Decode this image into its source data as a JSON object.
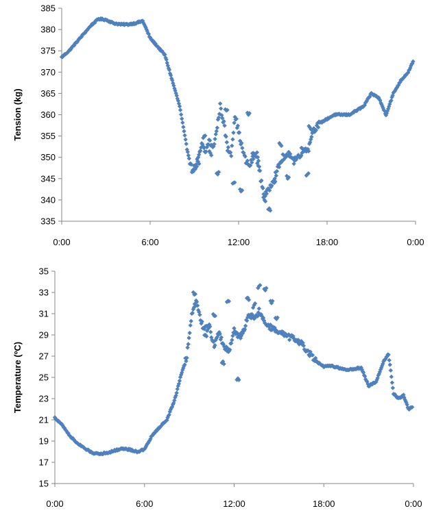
{
  "chart_data": [
    {
      "type": "scatter",
      "title": "",
      "xlabel": "",
      "ylabel": "Tension (kg)",
      "ylim": [
        335,
        385
      ],
      "yticks": [
        "385",
        "380",
        "375",
        "370",
        "365",
        "360",
        "355",
        "350",
        "345",
        "340",
        "335"
      ],
      "xlim": [
        "0:00",
        "0:00"
      ],
      "xticks": [
        "0:00",
        "6:00",
        "12:00",
        "18:00",
        "0:00"
      ],
      "grid": false,
      "legend": "none",
      "marker": "diamond",
      "color": "#4F81BD",
      "series": [
        {
          "x": [
            "0:00",
            "0:30",
            "1:00",
            "1:30",
            "2:00",
            "2:30",
            "3:00",
            "3:30",
            "4:00",
            "4:30",
            "5:00",
            "5:30",
            "6:00",
            "6:30",
            "7:00",
            "7:30",
            "8:00",
            "8:30",
            "8:50",
            "9:10",
            "9:30",
            "9:45",
            "10:00",
            "10:15",
            "10:30",
            "10:45",
            "11:00",
            "11:15",
            "11:30",
            "11:45",
            "12:00",
            "12:15",
            "12:30",
            "12:45",
            "13:00",
            "13:15",
            "13:30",
            "13:45",
            "14:00",
            "14:15",
            "14:30",
            "14:45",
            "15:00",
            "15:15",
            "15:30",
            "15:45",
            "16:00",
            "16:15",
            "16:30",
            "16:45",
            "17:00",
            "17:30",
            "18:00",
            "18:30",
            "19:00",
            "19:30",
            "20:00",
            "20:30",
            "21:00",
            "21:30",
            "22:00",
            "22:30",
            "23:00",
            "23:30",
            "23:50"
          ],
          "y": [
            373.5,
            375,
            377,
            379,
            381,
            382.5,
            382.3,
            381.5,
            381.2,
            381.2,
            381.5,
            382,
            378,
            376,
            374,
            368,
            362,
            352,
            347,
            348,
            353,
            351,
            354,
            352,
            356,
            362,
            358,
            352,
            351,
            360,
            356,
            352,
            349,
            348,
            350,
            351,
            345,
            341,
            342,
            344,
            346,
            348,
            350,
            350,
            351,
            349,
            350,
            351,
            352,
            352,
            356,
            358,
            359,
            360,
            360,
            360,
            361,
            362,
            365,
            364,
            360,
            365,
            368,
            370,
            372.5
          ]
        },
        {
          "x": [
            "9:15",
            "9:40",
            "10:05",
            "10:35",
            "11:10",
            "11:40",
            "12:10",
            "12:40",
            "13:00",
            "13:20",
            "13:45",
            "14:05",
            "14:25",
            "14:50",
            "15:20",
            "15:50",
            "16:20",
            "16:40",
            "16:50"
          ],
          "y": [
            349,
            355,
            351,
            346,
            361,
            344,
            342,
            360,
            351,
            348,
            340,
            338,
            344,
            353,
            345,
            350,
            352,
            346,
            357
          ]
        }
      ]
    },
    {
      "type": "scatter",
      "title": "",
      "xlabel": "",
      "ylabel": "Temperature (ºC)",
      "ylim": [
        15,
        35
      ],
      "yticks": [
        "35",
        "33",
        "31",
        "29",
        "27",
        "25",
        "23",
        "21",
        "19",
        "17",
        "15"
      ],
      "xlim": [
        "0:00",
        "0:00"
      ],
      "xticks": [
        "0:00",
        "6:00",
        "12:00",
        "18:00",
        "0:00"
      ],
      "grid": false,
      "legend": "none",
      "marker": "diamond",
      "color": "#4F81BD",
      "series": [
        {
          "x": [
            "0:00",
            "0:30",
            "1:00",
            "1:30",
            "2:00",
            "2:30",
            "3:00",
            "3:30",
            "4:00",
            "4:30",
            "5:00",
            "5:30",
            "6:00",
            "6:30",
            "7:00",
            "7:30",
            "8:00",
            "8:30",
            "8:50",
            "9:10",
            "9:30",
            "9:45",
            "10:00",
            "10:20",
            "10:40",
            "11:00",
            "11:20",
            "11:40",
            "12:00",
            "12:20",
            "12:40",
            "13:00",
            "13:20",
            "13:40",
            "14:00",
            "14:20",
            "14:40",
            "15:00",
            "15:30",
            "16:00",
            "16:30",
            "17:00",
            "17:30",
            "18:00",
            "18:30",
            "19:00",
            "19:30",
            "20:00",
            "20:30",
            "21:00",
            "21:30",
            "22:00",
            "22:20",
            "22:40",
            "23:00",
            "23:20",
            "23:40",
            "23:55"
          ],
          "y": [
            21.2,
            20.5,
            19.5,
            18.8,
            18.3,
            17.9,
            17.8,
            17.9,
            18.1,
            18.3,
            18.2,
            18.0,
            18.2,
            19.5,
            20.3,
            21.0,
            22.8,
            25.5,
            27,
            31,
            32.3,
            30.5,
            29.5,
            29.8,
            28,
            29.2,
            27.8,
            27.5,
            29.5,
            28.7,
            29.5,
            31,
            30.5,
            31.2,
            30.3,
            29.8,
            29.5,
            29.2,
            28.9,
            28.6,
            28.2,
            27.3,
            26.5,
            26.0,
            26.1,
            25.9,
            25.7,
            25.8,
            25.9,
            24.2,
            24.6,
            26.5,
            27.2,
            23.5,
            23.0,
            23.3,
            22.0,
            22.2
          ]
        },
        {
          "x": [
            "9:20",
            "10:05",
            "10:40",
            "11:15",
            "11:35",
            "12:15",
            "12:55",
            "13:20",
            "13:40",
            "14:05",
            "14:30",
            "14:50"
          ],
          "y": [
            32.8,
            29.0,
            30.8,
            26.5,
            32.2,
            24.9,
            32.5,
            31.8,
            33.6,
            33.2,
            32.0,
            30.5
          ]
        }
      ]
    }
  ]
}
